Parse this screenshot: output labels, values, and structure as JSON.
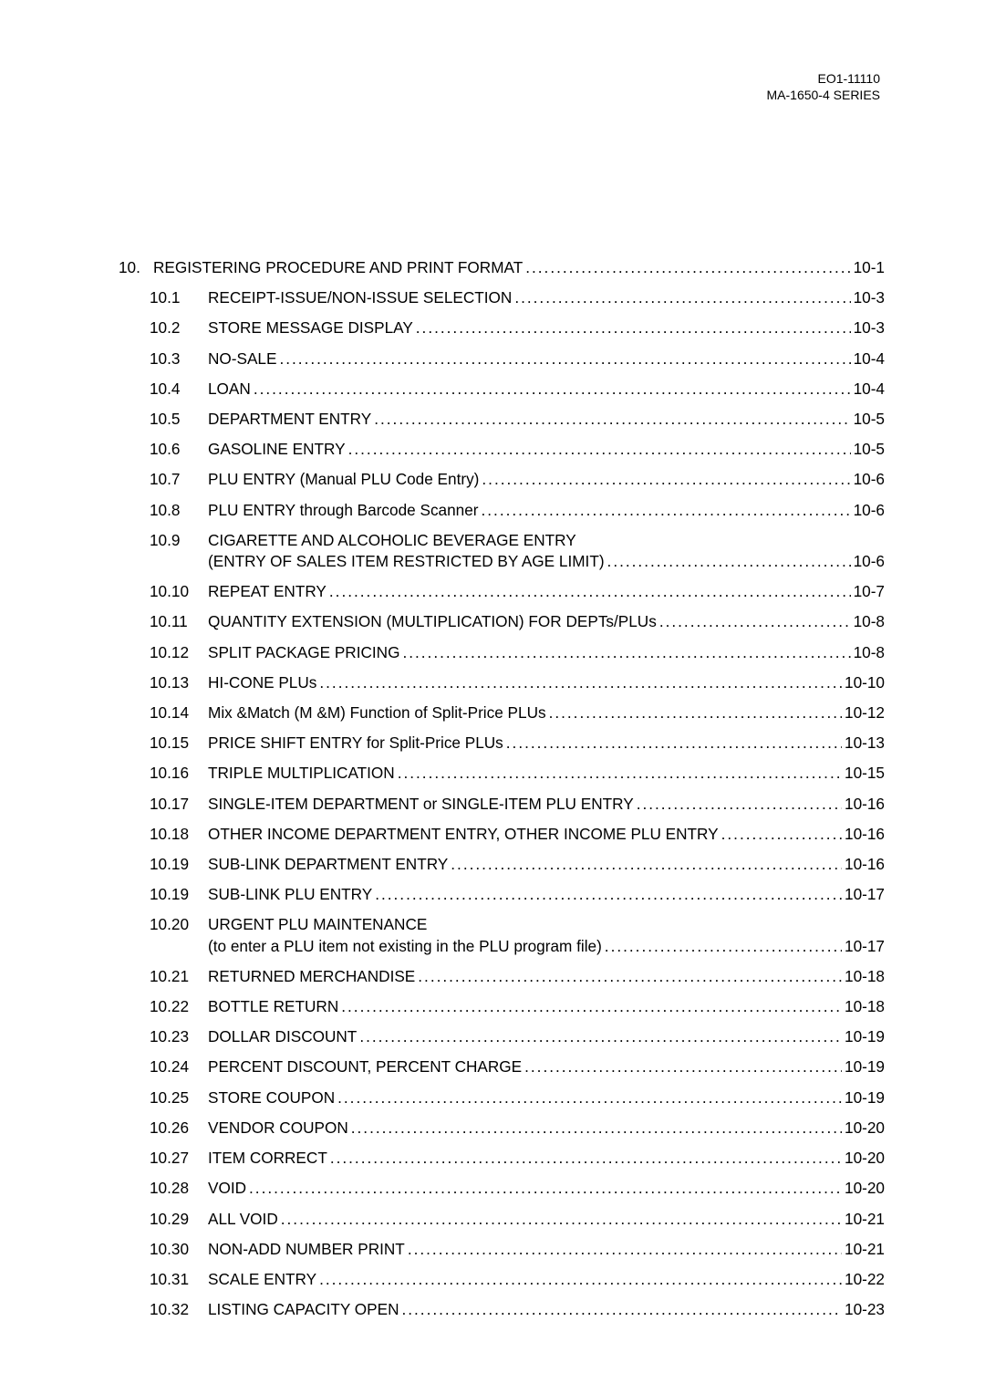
{
  "header": {
    "doc_number": "EO1-11110",
    "series": "MA-1650-4 SERIES"
  },
  "leader_dots": "............................................................................................................................................................................................................",
  "toc": [
    {
      "kind": "chapter",
      "num": "10.",
      "title": "REGISTERING  PROCEDURE  AND  PRINT  FORMAT",
      "page": "10-1"
    },
    {
      "kind": "section",
      "num": "10.1",
      "title": "RECEIPT-ISSUE/NON-ISSUE SELECTION",
      "page": "10-3"
    },
    {
      "kind": "section",
      "num": "10.2",
      "title": "STORE MESSAGE DISPLAY",
      "page": "10-3"
    },
    {
      "kind": "section",
      "num": "10.3",
      "title": "NO-SALE",
      "page": "10-4"
    },
    {
      "kind": "section",
      "num": "10.4",
      "title": "LOAN",
      "page": "10-4"
    },
    {
      "kind": "section",
      "num": "10.5",
      "title": "DEPARTMENT ENTRY",
      "page": "10-5"
    },
    {
      "kind": "section",
      "num": "10.6",
      "title": "GASOLINE ENTRY",
      "page": "10-5"
    },
    {
      "kind": "section",
      "num": "10.7",
      "title": "PLU ENTRY (Manual PLU Code Entry)",
      "page": "10-6"
    },
    {
      "kind": "section",
      "num": "10.8",
      "title": "PLU ENTRY through Barcode Scanner",
      "page": "10-6"
    },
    {
      "kind": "section",
      "num": "10.9",
      "title": "CIGARETTE AND ALCOHOLIC BEVERAGE ENTRY",
      "cont_title": "(ENTRY OF SALES ITEM RESTRICTED BY AGE LIMIT)",
      "page": "10-6"
    },
    {
      "kind": "section",
      "num": "10.10",
      "title": "REPEAT ENTRY",
      "page": "10-7"
    },
    {
      "kind": "section",
      "num": "10.11",
      "title": "QUANTITY EXTENSION (MULTIPLICATION) FOR DEPTs/PLUs",
      "page": "10-8"
    },
    {
      "kind": "section",
      "num": "10.12",
      "title": "SPLIT PACKAGE PRICING",
      "page": "10-8"
    },
    {
      "kind": "section",
      "num": "10.13",
      "title": "HI-CONE PLUs",
      "page": "10-10"
    },
    {
      "kind": "section",
      "num": "10.14",
      "title": "Mix &Match (M &M) Function of Split-Price PLUs",
      "page": "10-12"
    },
    {
      "kind": "section",
      "num": "10.15",
      "title": "PRICE SHIFT ENTRY for Split-Price PLUs",
      "page": "10-13"
    },
    {
      "kind": "section",
      "num": "10.16",
      "title": "TRIPLE MULTIPLICATION",
      "page": "10-15"
    },
    {
      "kind": "section",
      "num": "10.17",
      "title": "SINGLE-ITEM DEPARTMENT or SINGLE-ITEM PLU ENTRY",
      "page": "10-16"
    },
    {
      "kind": "section",
      "num": "10.18",
      "title": "OTHER INCOME DEPARTMENT ENTRY, OTHER INCOME PLU ENTRY",
      "page": "10-16"
    },
    {
      "kind": "section",
      "num": "10.19",
      "title": "SUB-LINK DEPARTMENT ENTRY",
      "page": "10-16"
    },
    {
      "kind": "section",
      "num": "10.19",
      "title": "SUB-LINK PLU ENTRY",
      "page": "10-17"
    },
    {
      "kind": "section",
      "num": "10.20",
      "title": "URGENT PLU MAINTENANCE",
      "cont_title": "(to enter a PLU item not existing in the PLU program file)",
      "page": "10-17"
    },
    {
      "kind": "section",
      "num": "10.21",
      "title": "RETURNED MERCHANDISE",
      "page": "10-18"
    },
    {
      "kind": "section",
      "num": "10.22",
      "title": "BOTTLE RETURN",
      "page": "10-18"
    },
    {
      "kind": "section",
      "num": "10.23",
      "title": "DOLLAR DISCOUNT",
      "page": "10-19"
    },
    {
      "kind": "section",
      "num": "10.24",
      "title": "PERCENT DISCOUNT, PERCENT CHARGE",
      "page": "10-19"
    },
    {
      "kind": "section",
      "num": "10.25",
      "title": "STORE COUPON",
      "page": "10-19"
    },
    {
      "kind": "section",
      "num": "10.26",
      "title": "VENDOR COUPON",
      "page": "10-20"
    },
    {
      "kind": "section",
      "num": "10.27",
      "title": "ITEM CORRECT",
      "page": "10-20"
    },
    {
      "kind": "section",
      "num": "10.28",
      "title": "VOID",
      "page": "10-20"
    },
    {
      "kind": "section",
      "num": "10.29",
      "title": "ALL VOID",
      "page": "10-21"
    },
    {
      "kind": "section",
      "num": "10.30",
      "title": "NON-ADD NUMBER PRINT",
      "page": "10-21"
    },
    {
      "kind": "section",
      "num": "10.31",
      "title": "SCALE ENTRY",
      "page": "10-22"
    },
    {
      "kind": "section",
      "num": "10.32",
      "title": "LISTING CAPACITY OPEN",
      "page": "10-23"
    }
  ]
}
